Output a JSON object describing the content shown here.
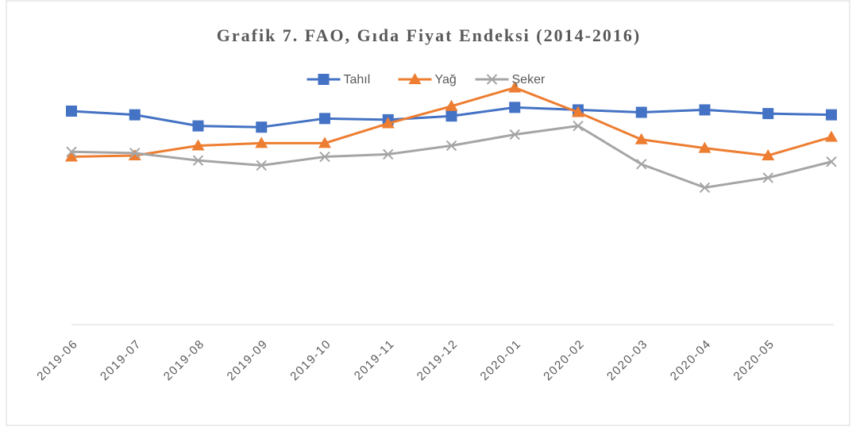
{
  "chart_data": {
    "type": "line",
    "title": "Grafik 7. FAO, Gıda Fiyat Endeksi (2014-2016)",
    "categories": [
      "2019-06",
      "2019-07",
      "2019-08",
      "2019-09",
      "2019-10",
      "2019-11",
      "2019-12",
      "2020-01",
      "2020-02",
      "2020-03",
      "2020-04",
      "2020-05",
      null
    ],
    "ylim": [
      0,
      200
    ],
    "legend": "top",
    "series": [
      {
        "name": "Tahıl",
        "color": "#4472c4",
        "marker": "square",
        "values": [
          173,
          170,
          161,
          160,
          167,
          166,
          169,
          176,
          174,
          172,
          174,
          171,
          170
        ]
      },
      {
        "name": "Yağ",
        "color": "#ed7d31",
        "marker": "triangle",
        "values": [
          136,
          137,
          145,
          147,
          147,
          163,
          177,
          192,
          172,
          150,
          143,
          137,
          152
        ]
      },
      {
        "name": "Şeker",
        "color": "#a5a5a5",
        "marker": "x",
        "values": [
          140,
          139,
          133,
          129,
          136,
          138,
          145,
          154,
          161,
          130,
          111,
          119,
          132
        ]
      }
    ]
  }
}
